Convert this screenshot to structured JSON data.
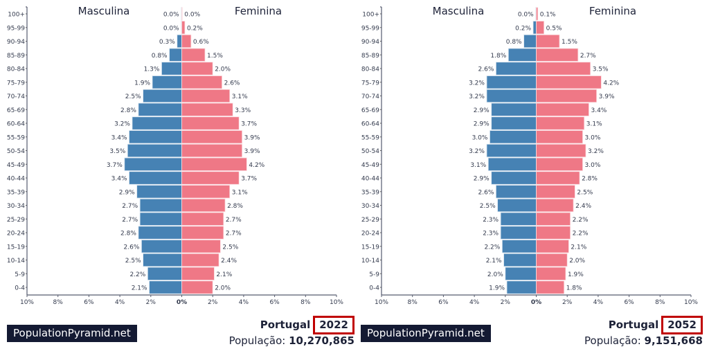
{
  "colors": {
    "male": "#4682b4",
    "female": "#ef7886",
    "text": "#333a4d",
    "highlight": "#c00000",
    "logo_bg": "#141a33"
  },
  "chart_data": [
    {
      "type": "bar",
      "title": "Portugal 2022",
      "country": "Portugal",
      "year": "2022",
      "population_label": "População:",
      "population": "10,270,865",
      "male_label": "Masculina",
      "female_label": "Feminina",
      "categories": [
        "100+",
        "95-99",
        "90-94",
        "85-89",
        "80-84",
        "75-79",
        "70-74",
        "65-69",
        "60-64",
        "55-59",
        "50-54",
        "45-49",
        "40-44",
        "35-39",
        "30-34",
        "25-29",
        "20-24",
        "15-19",
        "10-14",
        "5-9",
        "0-4"
      ],
      "series": [
        {
          "name": "Masculina",
          "values": [
            0.0,
            0.0,
            0.3,
            0.8,
            1.3,
            1.9,
            2.5,
            2.8,
            3.2,
            3.4,
            3.5,
            3.7,
            3.4,
            2.9,
            2.7,
            2.7,
            2.8,
            2.6,
            2.5,
            2.2,
            2.1
          ]
        },
        {
          "name": "Feminina",
          "values": [
            0.0,
            0.2,
            0.6,
            1.5,
            2.0,
            2.6,
            3.1,
            3.3,
            3.7,
            3.9,
            3.9,
            4.2,
            3.7,
            3.1,
            2.8,
            2.7,
            2.7,
            2.5,
            2.4,
            2.1,
            2.0
          ]
        }
      ],
      "xlim": [
        -10,
        10
      ],
      "xticks": [
        "10%",
        "8%",
        "6%",
        "4%",
        "2%",
        "0%",
        "2%",
        "4%",
        "6%",
        "8%",
        "10%"
      ],
      "grid": false
    },
    {
      "type": "bar",
      "title": "Portugal 2052",
      "country": "Portugal",
      "year": "2052",
      "population_label": "População:",
      "population": "9,151,668",
      "male_label": "Masculina",
      "female_label": "Feminina",
      "categories": [
        "100+",
        "95-99",
        "90-94",
        "85-89",
        "80-84",
        "75-79",
        "70-74",
        "65-69",
        "60-64",
        "55-59",
        "50-54",
        "45-49",
        "40-44",
        "35-39",
        "30-34",
        "25-29",
        "20-24",
        "15-19",
        "10-14",
        "5-9",
        "0-4"
      ],
      "series": [
        {
          "name": "Masculina",
          "values": [
            0.0,
            0.2,
            0.8,
            1.8,
            2.6,
            3.2,
            3.2,
            2.9,
            2.9,
            3.0,
            3.2,
            3.1,
            2.9,
            2.6,
            2.5,
            2.3,
            2.3,
            2.2,
            2.1,
            2.0,
            1.9
          ]
        },
        {
          "name": "Feminina",
          "values": [
            0.1,
            0.5,
            1.5,
            2.7,
            3.5,
            4.2,
            3.9,
            3.4,
            3.1,
            3.0,
            3.2,
            3.0,
            2.8,
            2.5,
            2.4,
            2.2,
            2.2,
            2.1,
            2.0,
            1.9,
            1.8
          ]
        }
      ],
      "xlim": [
        -10,
        10
      ],
      "xticks": [
        "10%",
        "8%",
        "6%",
        "4%",
        "2%",
        "0%",
        "2%",
        "4%",
        "6%",
        "8%",
        "10%"
      ],
      "grid": false
    }
  ],
  "logo": {
    "text": "PopulationPyramid.net"
  }
}
